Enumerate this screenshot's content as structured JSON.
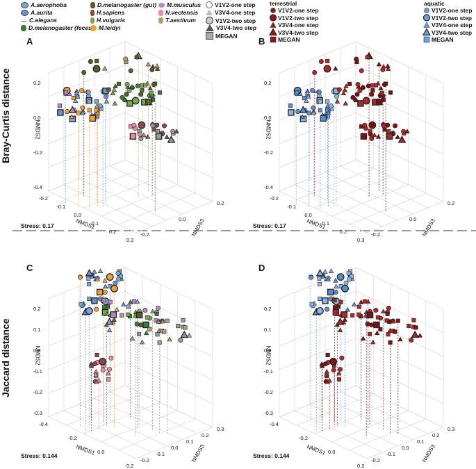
{
  "legend_left": {
    "species": [
      {
        "label": "A.aerophoba",
        "color": "#7aa7d6"
      },
      {
        "label": "A.aurita",
        "color": "#6f90c9"
      },
      {
        "label": "C.elegans",
        "color": "#999999"
      },
      {
        "label": "D.melanogaster (feces)",
        "color": "#3a7a3a"
      },
      {
        "label": "D.melanogaster (gut)",
        "color": "#5a5a2a"
      },
      {
        "label": "H.sapiens",
        "color": "#8a4a4a"
      },
      {
        "label": "H.vulgaris",
        "color": "#7aa850"
      },
      {
        "label": "M.leidyi",
        "color": "#e8a040"
      },
      {
        "label": "M.musculus",
        "color": "#b08ac0"
      },
      {
        "label": "N.vectensis",
        "color": "#e88aa0"
      },
      {
        "label": "T.aestivum",
        "color": "#b0a070"
      }
    ],
    "methods": [
      "V1V2-one step",
      "V3V4-one step",
      "V1V2-two step",
      "V3V4-two step",
      "MEGAN"
    ]
  },
  "legend_right": {
    "terrestrial_title": "terrestrial",
    "aquatic_title": "aquatic",
    "terrestrial": [
      "V1V2-one step",
      "V1V2-two step",
      "V3V4-one step",
      "V3V4-two step",
      "MEGAN"
    ],
    "aquatic": [
      "V1V2-one step",
      "V1V2-two step",
      "V3V4-one step",
      "V3V4-two step",
      "MEGAN"
    ],
    "terrestrial_color": "#8b1a1a",
    "aquatic_color": "#6f9fd8"
  },
  "row_labels": {
    "top": "Bray-Curtis distance",
    "bottom": "Jaccard distance"
  },
  "panels": [
    {
      "letter": "A",
      "stress": "Stress: 0.17"
    },
    {
      "letter": "B",
      "stress": "Stress: 0.17"
    },
    {
      "letter": "C",
      "stress": "Stress: 0.144"
    },
    {
      "letter": "D",
      "stress": "Stress: 0.144"
    }
  ],
  "chart_data": [
    {
      "type": "scatter",
      "panel": "A",
      "xlabel": "NMDS1",
      "ylabel": "NMDS2",
      "zlabel": "NMDS3",
      "x_ticks": [
        "-0.2",
        "-0.1",
        "0.0",
        "0.1",
        "0.2",
        "0.3"
      ],
      "y_ticks": [
        "0.2",
        "0.0",
        "-0.2",
        "-0.4"
      ],
      "z_ticks": [
        "0.2",
        "0.0",
        "-0.2"
      ]
    },
    {
      "type": "scatter",
      "panel": "B",
      "xlabel": "NMDS1",
      "ylabel": "NMDS2",
      "zlabel": "NMDS3",
      "x_ticks": [
        "-0.2",
        "-0.1",
        "0.0",
        "0.1",
        "0.2",
        "0.3"
      ],
      "y_ticks": [
        "0.2",
        "0.0",
        "-0.2",
        "-0.4"
      ],
      "z_ticks": [
        "0.2",
        "0.0",
        "-0.2"
      ]
    },
    {
      "type": "scatter",
      "panel": "C",
      "xlabel": "NMDS1",
      "ylabel": "NMDS2",
      "zlabel": "NMDS3",
      "x_ticks": [
        "-0.4",
        "-0.2",
        "0.0",
        "0.2"
      ],
      "y_ticks": [
        "0.2",
        "0.1",
        "0.0",
        "-0.1",
        "-0.2",
        "-0.3"
      ],
      "z_ticks": [
        "0.3",
        "0.2",
        "0.1",
        "0.0",
        "-0.1",
        "-0.2"
      ]
    },
    {
      "type": "scatter",
      "panel": "D",
      "xlabel": "NMDS1",
      "ylabel": "NMDS2",
      "zlabel": "NMDS3",
      "x_ticks": [
        "-0.4",
        "-0.2",
        "0.0",
        "0.2"
      ],
      "y_ticks": [
        "0.2",
        "0.1",
        "0.0",
        "-0.1",
        "-0.2",
        "-0.3"
      ],
      "z_ticks": [
        "0.3",
        "0.2",
        "0.1",
        "0.0",
        "-0.1",
        "-0.2"
      ]
    }
  ]
}
